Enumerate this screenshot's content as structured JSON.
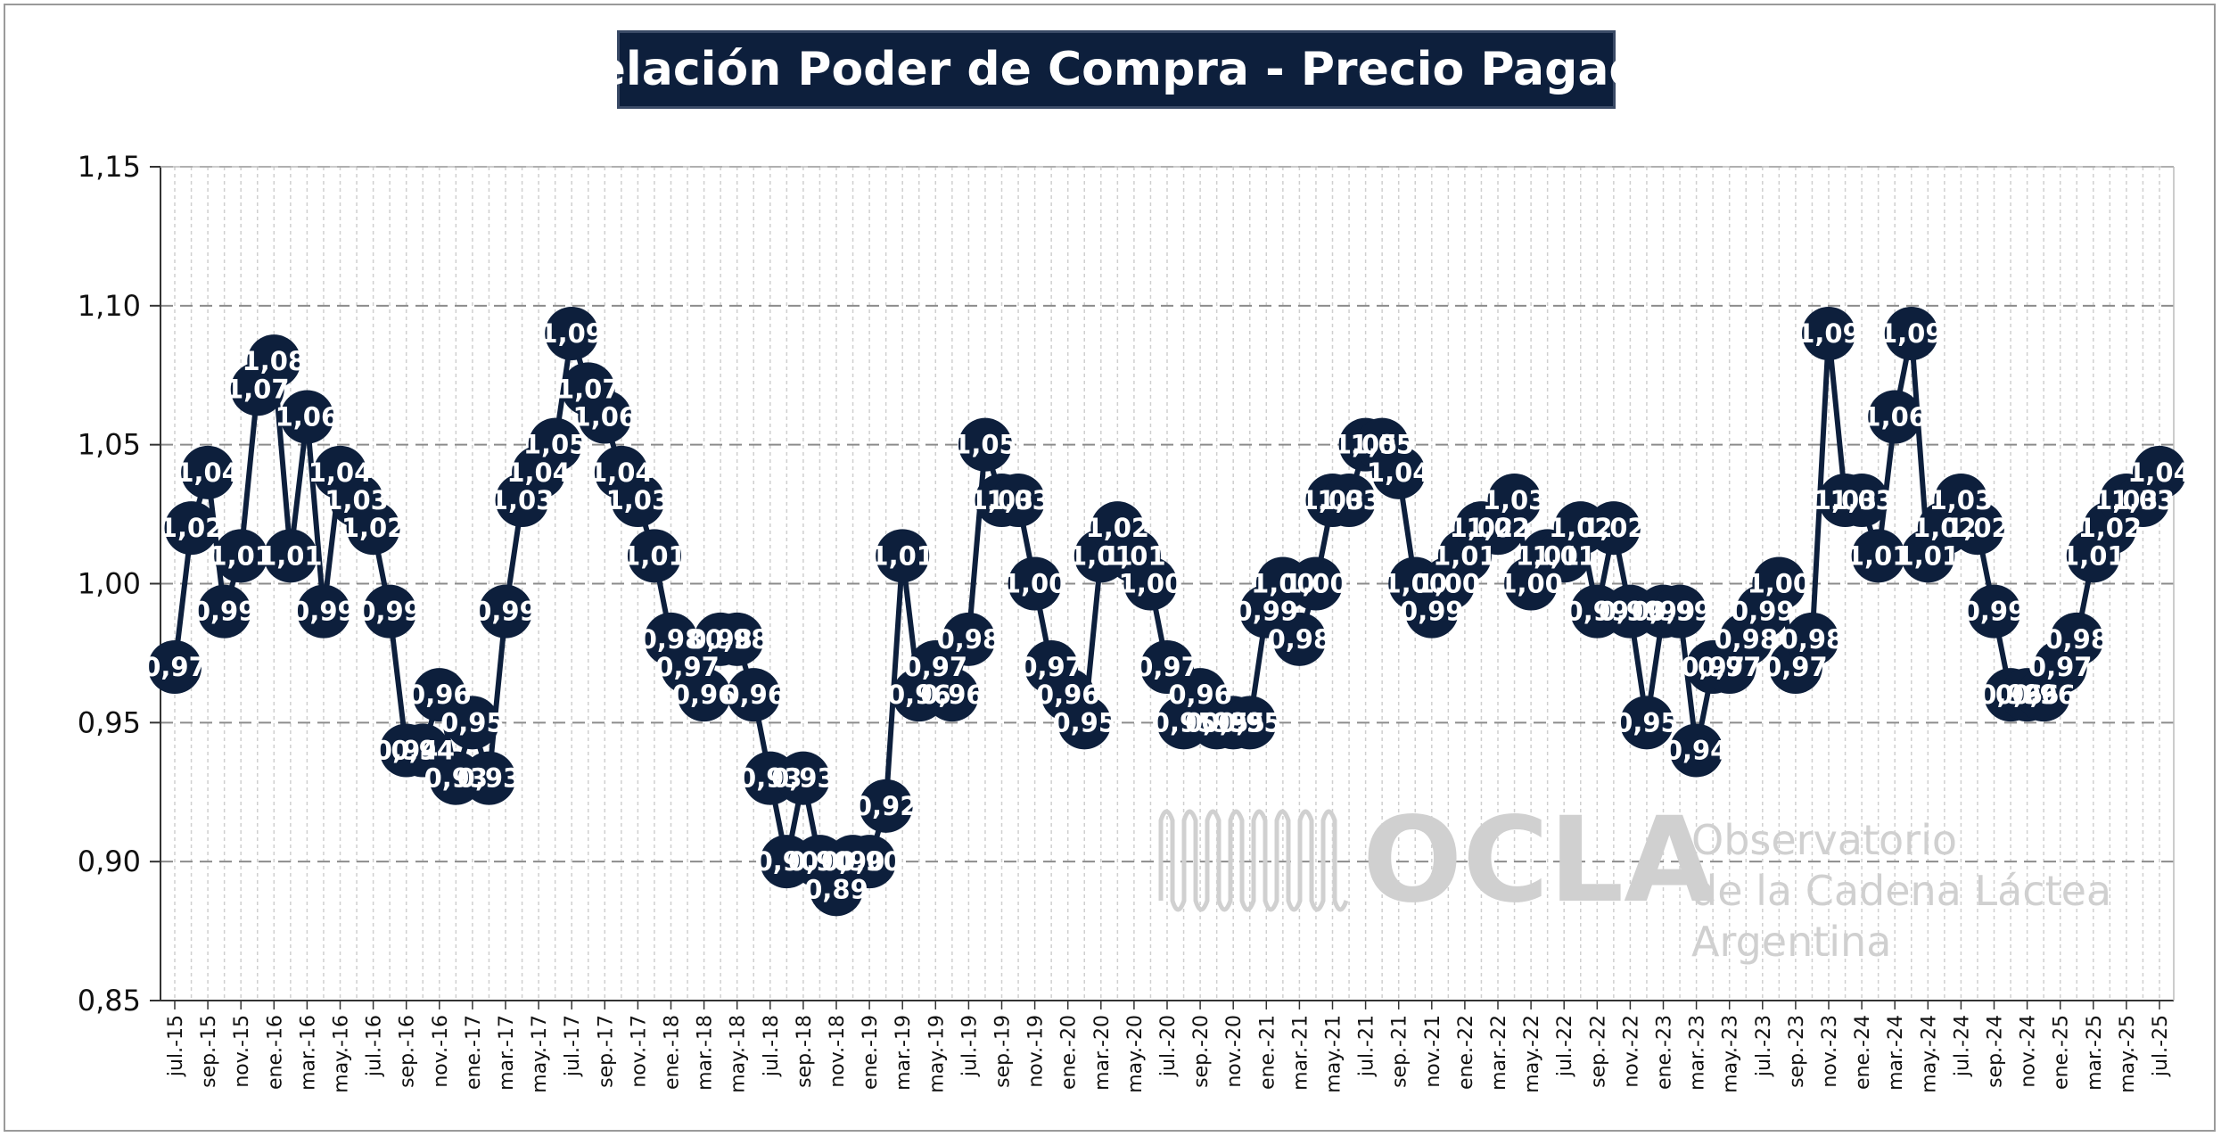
{
  "colors": {
    "series": "#0d1f3c",
    "title_bg": "#0d1f3c",
    "label_text": "#ffffff",
    "grid_major": "#8c8c8c",
    "grid_minor": "#cfcfcf",
    "watermark": "#d0d0d0"
  },
  "watermark": {
    "name": "OCLA",
    "line1": "Observatorio",
    "line2": "de la Cadena Láctea",
    "line3": "Argentina"
  },
  "chart_data": {
    "type": "line",
    "title": "Relación Poder de Compra - Precio Pagado",
    "xlabel": "",
    "ylabel": "",
    "ylim": [
      0.85,
      1.15
    ],
    "y_ticks": [
      "0,85",
      "0,90",
      "0,95",
      "1,00",
      "1,05",
      "1,10",
      "1,15"
    ],
    "grid": true,
    "legend": "none",
    "x": [
      "jul.-15",
      "ago.-15",
      "sep.-15",
      "oct.-15",
      "nov.-15",
      "dic.-15",
      "ene.-16",
      "feb.-16",
      "mar.-16",
      "abr.-16",
      "may.-16",
      "jun.-16",
      "jul.-16",
      "ago.-16",
      "sep.-16",
      "oct.-16",
      "nov.-16",
      "dic.-16",
      "ene.-17",
      "feb.-17",
      "mar.-17",
      "abr.-17",
      "may.-17",
      "jun.-17",
      "jul.-17",
      "ago.-17",
      "sep.-17",
      "oct.-17",
      "nov.-17",
      "dic.-17",
      "ene.-18",
      "feb.-18",
      "mar.-18",
      "abr.-18",
      "may.-18",
      "jun.-18",
      "jul.-18",
      "ago.-18",
      "sep.-18",
      "oct.-18",
      "nov.-18",
      "dic.-18",
      "ene.-19",
      "feb.-19",
      "mar.-19",
      "abr.-19",
      "may.-19",
      "jun.-19",
      "jul.-19",
      "ago.-19",
      "sep.-19",
      "oct.-19",
      "nov.-19",
      "dic.-19",
      "ene.-20",
      "feb.-20",
      "mar.-20",
      "abr.-20",
      "may.-20",
      "jun.-20",
      "jul.-20",
      "ago.-20",
      "sep.-20",
      "oct.-20",
      "nov.-20",
      "dic.-20",
      "ene.-21",
      "feb.-21",
      "mar.-21",
      "abr.-21",
      "may.-21",
      "jun.-21",
      "jul.-21",
      "ago.-21",
      "sep.-21",
      "oct.-21",
      "nov.-21",
      "dic.-21",
      "ene.-22",
      "feb.-22",
      "mar.-22",
      "abr.-22",
      "may.-22",
      "jun.-22",
      "jul.-22",
      "ago.-22",
      "sep.-22",
      "oct.-22",
      "nov.-22",
      "dic.-22",
      "ene.-23",
      "feb.-23",
      "mar.-23",
      "abr.-23",
      "may.-23",
      "jun.-23",
      "jul.-23",
      "ago.-23",
      "sep.-23",
      "oct.-23",
      "nov.-23",
      "dic.-23",
      "ene.-24",
      "feb.-24",
      "mar.-24",
      "abr.-24",
      "may.-24",
      "jun.-24",
      "jul.-24",
      "ago.-24",
      "sep.-24",
      "oct.-24",
      "nov.-24",
      "dic.-24",
      "ene.-25",
      "feb.-25",
      "mar.-25",
      "abr.-25",
      "may.-25",
      "jun.-25",
      "jul.-25"
    ],
    "x_tick_labels": [
      "jul.-15",
      "sep.-15",
      "nov.-15",
      "ene.-16",
      "mar.-16",
      "may.-16",
      "jul.-16",
      "sep.-16",
      "nov.-16",
      "ene.-17",
      "mar.-17",
      "may.-17",
      "jul.-17",
      "sep.-17",
      "nov.-17",
      "ene.-18",
      "mar.-18",
      "may.-18",
      "jul.-18",
      "sep.-18",
      "nov.-18",
      "ene.-19",
      "mar.-19",
      "may.-19",
      "jul.-19",
      "sep.-19",
      "nov.-19",
      "ene.-20",
      "mar.-20",
      "may.-20",
      "jul.-20",
      "sep.-20",
      "nov.-20",
      "ene.-21",
      "mar.-21",
      "may.-21",
      "jul.-21",
      "sep.-21",
      "nov.-21",
      "ene.-22",
      "mar.-22",
      "may.-22",
      "jul.-22",
      "sep.-22",
      "nov.-22",
      "ene.-23",
      "mar.-23",
      "may.-23",
      "jul.-23",
      "sep.-23",
      "nov.-23",
      "ene.-24",
      "mar.-24",
      "may.-24",
      "jul.-24",
      "sep.-24",
      "nov.-24",
      "ene.-25",
      "mar.-25",
      "may.-25",
      "jul.-25"
    ],
    "series": [
      {
        "values": [
          0.97,
          1.02,
          1.04,
          0.99,
          1.01,
          1.07,
          1.08,
          1.01,
          1.06,
          0.99,
          1.04,
          1.03,
          1.02,
          0.99,
          0.94,
          0.94,
          0.96,
          0.93,
          0.95,
          0.93,
          0.99,
          1.03,
          1.04,
          1.05,
          1.09,
          1.07,
          1.06,
          1.04,
          1.03,
          1.01,
          0.98,
          0.97,
          0.96,
          0.98,
          0.98,
          0.96,
          0.93,
          0.9,
          0.93,
          0.9,
          0.89,
          0.9,
          0.9,
          0.92,
          1.01,
          0.96,
          0.97,
          0.96,
          0.98,
          1.05,
          1.03,
          1.03,
          1.0,
          0.97,
          0.96,
          0.95,
          1.01,
          1.02,
          1.01,
          1.0,
          0.97,
          0.95,
          0.96,
          0.95,
          0.95,
          0.95,
          0.99,
          1.0,
          0.98,
          1.0,
          1.03,
          1.03,
          1.05,
          1.05,
          1.04,
          1.0,
          0.99,
          1.0,
          1.01,
          1.02,
          1.02,
          1.03,
          1.0,
          1.01,
          1.01,
          1.02,
          0.99,
          1.02,
          0.99,
          0.95,
          0.99,
          0.99,
          0.94,
          0.97,
          0.97,
          0.98,
          0.99,
          1.0,
          0.97,
          0.98,
          1.09,
          1.03,
          1.03,
          1.01,
          1.06,
          1.09,
          1.01,
          1.02,
          1.03,
          1.02,
          0.99,
          0.96,
          0.96,
          0.96,
          0.97,
          0.98,
          1.01,
          1.02,
          1.03,
          1.03,
          1.04
        ],
        "labels": [
          "0,97",
          "1,02",
          "1,04",
          "0,99",
          "1,01",
          "1,07",
          "1,08",
          "1,01",
          "1,06",
          "0,99",
          "1,04",
          "1,03",
          "1,02",
          "0,99",
          "0,94",
          "0,94",
          "0,96",
          "0,93",
          "0,95",
          "0,93",
          "0,99",
          "1,03",
          "1,04",
          "1,05",
          "1,09",
          "1,07",
          "1,06",
          "1,04",
          "1,03",
          "1,01",
          "0,98",
          "0,97",
          "0,96",
          "0,98",
          "0,98",
          "0,96",
          "0,93",
          "0,90",
          "0,93",
          "0,90",
          "0,89",
          "0,90",
          "0,90",
          "0,92",
          "1,01",
          "0,96",
          "0,97",
          "0,96",
          "0,98",
          "1,05",
          "1,03",
          "1,03",
          "1,00",
          "0,97",
          "0,96",
          "0,95",
          "1,01",
          "1,02",
          "1,01",
          "1,00",
          "0,97",
          "0,95",
          "0,96",
          "0,95",
          "0,95",
          "0,95",
          "0,99",
          "1,00",
          "0,98",
          "1,00",
          "1,03",
          "1,03",
          "1,05",
          "1,05",
          "1,04",
          "1,00",
          "0,99",
          "1,00",
          "1,01",
          "1,02",
          "1,02",
          "1,03",
          "1,00",
          "1,01",
          "1,01",
          "1,02",
          "0,99",
          "1,02",
          "0,99",
          "0,95",
          "0,99",
          "0,99",
          "0,94",
          "0,97",
          "0,97",
          "0,98",
          "0,99",
          "1,00",
          "0,97",
          "0,98",
          "1,09",
          "1,03",
          "1,03",
          "1,01",
          "1,06",
          "1,09",
          "1,01",
          "1,02",
          "1,03",
          "1,02",
          "0,99",
          "0,96",
          "0,96",
          "0,96",
          "0,97",
          "0,98",
          "1,01",
          "1,02",
          "1,03",
          "1,03",
          "1,04"
        ]
      }
    ]
  }
}
